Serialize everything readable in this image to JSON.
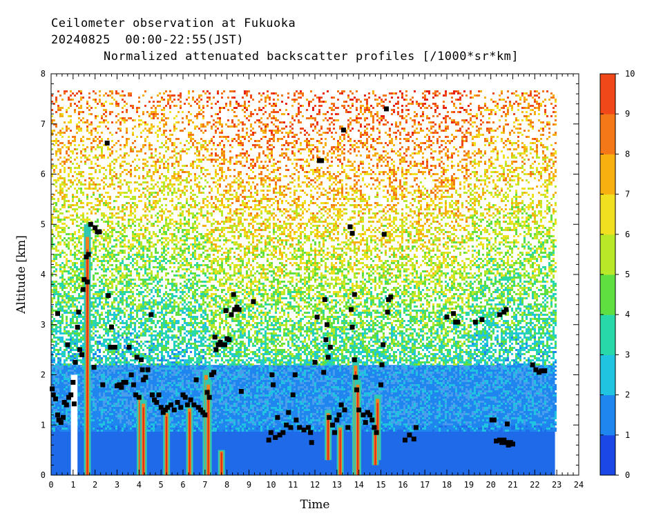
{
  "titles": {
    "line1": "Ceilometer observation at Fukuoka",
    "line2": "20240825  00:00-22:55(JST)",
    "line3": "Normalized attenuated backscatter profiles [/1000*sr*km]"
  },
  "chart_data": {
    "type": "heatmap",
    "title": "Normalized attenuated backscatter profiles [/1000*sr*km]",
    "xlabel": "Time",
    "ylabel": "Altitude [km]",
    "xlim": [
      0,
      24
    ],
    "ylim": [
      0,
      8
    ],
    "data_time_range": [
      0,
      22.92
    ],
    "data_alt_top": 7.67,
    "x_ticks": [
      "0",
      "1",
      "2",
      "3",
      "4",
      "5",
      "6",
      "7",
      "8",
      "9",
      "10",
      "11",
      "12",
      "13",
      "14",
      "15",
      "16",
      "17",
      "18",
      "19",
      "20",
      "21",
      "22",
      "23",
      "24"
    ],
    "y_ticks": [
      "0",
      "1",
      "2",
      "3",
      "4",
      "5",
      "6",
      "7",
      "8"
    ],
    "colorbar": {
      "range": [
        0,
        10
      ],
      "ticks": [
        "0",
        "1",
        "2",
        "3",
        "4",
        "5",
        "6",
        "7",
        "8",
        "9",
        "10"
      ],
      "colors": [
        "#1a47e6",
        "#1f86f0",
        "#20c4e0",
        "#28d8a8",
        "#60e040",
        "#b8e828",
        "#f0e020",
        "#f8b010",
        "#f57818",
        "#f04818",
        "#e82010"
      ]
    },
    "missing_data_gap": [
      0.9,
      1.2
    ],
    "cloud_base_color": "#000000",
    "cloud_base_points": [
      [
        0.05,
        1.72
      ],
      [
        0.1,
        1.6
      ],
      [
        0.2,
        1.52
      ],
      [
        0.3,
        1.2
      ],
      [
        0.35,
        1.1
      ],
      [
        0.45,
        1.05
      ],
      [
        0.55,
        1.15
      ],
      [
        0.6,
        1.45
      ],
      [
        0.7,
        1.4
      ],
      [
        0.8,
        1.55
      ],
      [
        0.9,
        1.6
      ],
      [
        1.0,
        1.85
      ],
      [
        1.05,
        1.42
      ],
      [
        0.75,
        2.6
      ],
      [
        0.3,
        3.22
      ],
      [
        1.1,
        2.25
      ],
      [
        1.2,
        2.95
      ],
      [
        1.25,
        3.25
      ],
      [
        1.3,
        2.5
      ],
      [
        1.4,
        2.4
      ],
      [
        1.45,
        3.7
      ],
      [
        1.5,
        3.9
      ],
      [
        1.6,
        4.35
      ],
      [
        1.7,
        4.4
      ],
      [
        1.65,
        3.85
      ],
      [
        1.8,
        5.0
      ],
      [
        2.0,
        4.93
      ],
      [
        2.1,
        4.85
      ],
      [
        2.2,
        4.85
      ],
      [
        1.95,
        2.15
      ],
      [
        2.35,
        1.8
      ],
      [
        2.55,
        6.62
      ],
      [
        2.6,
        3.58
      ],
      [
        2.7,
        2.55
      ],
      [
        2.75,
        2.95
      ],
      [
        2.9,
        2.55
      ],
      [
        3.0,
        1.78
      ],
      [
        3.1,
        1.8
      ],
      [
        3.2,
        1.75
      ],
      [
        3.3,
        1.85
      ],
      [
        3.4,
        1.85
      ],
      [
        3.55,
        2.55
      ],
      [
        3.65,
        2.0
      ],
      [
        3.75,
        1.8
      ],
      [
        3.85,
        1.6
      ],
      [
        3.9,
        2.35
      ],
      [
        4.0,
        1.55
      ],
      [
        4.1,
        2.3
      ],
      [
        4.15,
        2.1
      ],
      [
        4.2,
        1.9
      ],
      [
        4.3,
        1.95
      ],
      [
        4.4,
        2.1
      ],
      [
        4.55,
        3.2
      ],
      [
        4.6,
        1.6
      ],
      [
        4.7,
        1.5
      ],
      [
        4.8,
        1.45
      ],
      [
        4.9,
        1.6
      ],
      [
        5.0,
        1.35
      ],
      [
        5.1,
        1.25
      ],
      [
        5.2,
        1.3
      ],
      [
        5.3,
        1.35
      ],
      [
        5.45,
        1.4
      ],
      [
        5.6,
        1.3
      ],
      [
        5.75,
        1.45
      ],
      [
        5.9,
        1.35
      ],
      [
        6.0,
        1.6
      ],
      [
        6.1,
        1.55
      ],
      [
        6.2,
        1.4
      ],
      [
        6.35,
        1.5
      ],
      [
        6.5,
        1.4
      ],
      [
        6.6,
        1.9
      ],
      [
        6.7,
        1.35
      ],
      [
        6.8,
        1.3
      ],
      [
        6.9,
        1.25
      ],
      [
        7.0,
        1.2
      ],
      [
        7.1,
        1.65
      ],
      [
        7.2,
        1.55
      ],
      [
        7.3,
        2.0
      ],
      [
        7.4,
        2.05
      ],
      [
        7.45,
        2.75
      ],
      [
        7.5,
        2.5
      ],
      [
        7.6,
        2.6
      ],
      [
        7.7,
        2.65
      ],
      [
        7.8,
        2.6
      ],
      [
        7.9,
        2.6
      ],
      [
        7.95,
        3.28
      ],
      [
        8.0,
        2.72
      ],
      [
        8.1,
        2.7
      ],
      [
        8.2,
        3.2
      ],
      [
        8.3,
        3.6
      ],
      [
        8.35,
        3.3
      ],
      [
        8.45,
        3.35
      ],
      [
        8.55,
        3.3
      ],
      [
        8.65,
        1.67
      ],
      [
        9.2,
        3.46
      ],
      [
        9.9,
        0.7
      ],
      [
        10.0,
        0.85
      ],
      [
        10.05,
        2.0
      ],
      [
        10.1,
        1.8
      ],
      [
        10.2,
        0.75
      ],
      [
        10.3,
        1.15
      ],
      [
        10.4,
        0.8
      ],
      [
        10.55,
        0.85
      ],
      [
        10.7,
        1.0
      ],
      [
        10.8,
        1.25
      ],
      [
        10.9,
        0.95
      ],
      [
        11.0,
        1.6
      ],
      [
        11.1,
        2.0
      ],
      [
        11.15,
        1.1
      ],
      [
        11.3,
        0.95
      ],
      [
        11.5,
        0.9
      ],
      [
        11.7,
        0.95
      ],
      [
        11.8,
        0.85
      ],
      [
        11.85,
        0.65
      ],
      [
        12.0,
        2.25
      ],
      [
        12.1,
        3.15
      ],
      [
        12.2,
        6.27
      ],
      [
        12.3,
        6.27
      ],
      [
        12.4,
        2.05
      ],
      [
        12.45,
        3.5
      ],
      [
        12.5,
        2.7
      ],
      [
        12.55,
        3.0
      ],
      [
        12.6,
        2.35
      ],
      [
        12.65,
        1.15
      ],
      [
        12.7,
        2.55
      ],
      [
        12.8,
        1.0
      ],
      [
        12.9,
        0.85
      ],
      [
        13.0,
        1.1
      ],
      [
        13.1,
        1.2
      ],
      [
        13.2,
        1.4
      ],
      [
        13.3,
        6.88
      ],
      [
        13.35,
        1.3
      ],
      [
        13.5,
        0.95
      ],
      [
        13.6,
        4.95
      ],
      [
        13.7,
        4.82
      ],
      [
        13.65,
        3.3
      ],
      [
        13.7,
        2.95
      ],
      [
        13.8,
        3.6
      ],
      [
        13.8,
        2.3
      ],
      [
        13.85,
        1.95
      ],
      [
        13.9,
        1.7
      ],
      [
        14.0,
        1.3
      ],
      [
        14.2,
        1.2
      ],
      [
        14.3,
        1.05
      ],
      [
        14.4,
        1.25
      ],
      [
        14.5,
        1.2
      ],
      [
        14.6,
        1.1
      ],
      [
        14.7,
        0.95
      ],
      [
        14.8,
        0.85
      ],
      [
        15.0,
        1.8
      ],
      [
        15.05,
        2.2
      ],
      [
        15.1,
        2.6
      ],
      [
        15.15,
        4.8
      ],
      [
        15.25,
        7.3
      ],
      [
        15.3,
        3.25
      ],
      [
        15.35,
        3.5
      ],
      [
        15.45,
        3.55
      ],
      [
        16.1,
        0.7
      ],
      [
        16.3,
        0.8
      ],
      [
        16.5,
        0.72
      ],
      [
        16.6,
        0.95
      ],
      [
        18.0,
        3.15
      ],
      [
        18.3,
        3.22
      ],
      [
        18.4,
        3.05
      ],
      [
        18.5,
        3.05
      ],
      [
        19.3,
        3.05
      ],
      [
        19.6,
        3.1
      ],
      [
        20.05,
        1.1
      ],
      [
        20.15,
        1.1
      ],
      [
        20.25,
        0.68
      ],
      [
        20.4,
        0.7
      ],
      [
        20.5,
        0.65
      ],
      [
        20.6,
        0.7
      ],
      [
        20.7,
        0.65
      ],
      [
        20.8,
        0.6
      ],
      [
        20.9,
        0.65
      ],
      [
        21.0,
        0.62
      ],
      [
        20.4,
        3.2
      ],
      [
        20.6,
        3.25
      ],
      [
        20.7,
        3.3
      ],
      [
        20.75,
        1.02
      ],
      [
        21.9,
        2.2
      ],
      [
        22.05,
        2.1
      ],
      [
        22.2,
        2.05
      ],
      [
        22.3,
        2.08
      ],
      [
        22.45,
        2.08
      ]
    ]
  }
}
